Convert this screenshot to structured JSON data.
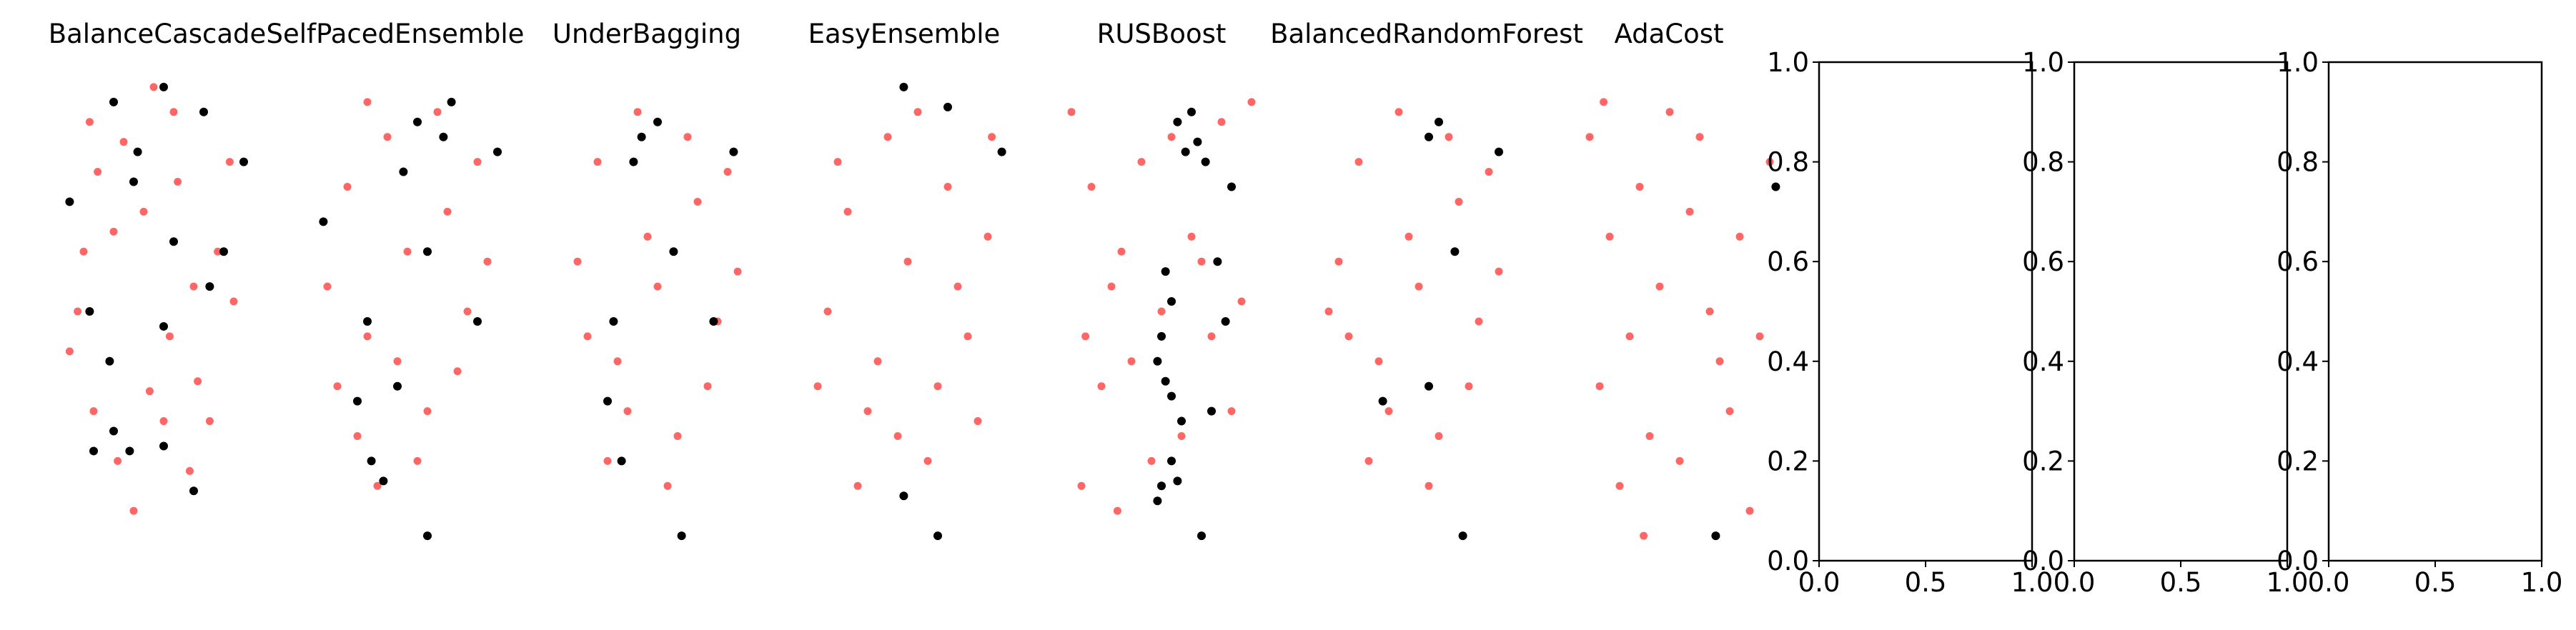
{
  "chart_data": [
    {
      "type": "scatter",
      "title": "BalanceCascade",
      "axes_visible": false,
      "series": [
        {
          "color": "#ff0000",
          "opacity": 0.6,
          "points": [
            [
              0.08,
              0.42
            ],
            [
              0.15,
              0.62
            ],
            [
              0.22,
              0.78
            ],
            [
              0.35,
              0.84
            ],
            [
              0.45,
              0.7
            ],
            [
              0.6,
              0.9
            ],
            [
              0.7,
              0.55
            ],
            [
              0.82,
              0.62
            ],
            [
              0.2,
              0.3
            ],
            [
              0.32,
              0.2
            ],
            [
              0.48,
              0.34
            ],
            [
              0.58,
              0.45
            ],
            [
              0.68,
              0.18
            ],
            [
              0.72,
              0.36
            ],
            [
              0.9,
              0.52
            ],
            [
              0.12,
              0.5
            ],
            [
              0.4,
              0.1
            ],
            [
              0.55,
              0.28
            ],
            [
              0.78,
              0.28
            ],
            [
              0.3,
              0.66
            ],
            [
              0.62,
              0.76
            ],
            [
              0.18,
              0.88
            ],
            [
              0.5,
              0.95
            ],
            [
              0.88,
              0.8
            ]
          ]
        },
        {
          "color": "#000000",
          "opacity": 1,
          "points": [
            [
              0.3,
              0.92
            ],
            [
              0.42,
              0.82
            ],
            [
              0.55,
              0.95
            ],
            [
              0.75,
              0.9
            ],
            [
              0.95,
              0.8
            ],
            [
              0.08,
              0.72
            ],
            [
              0.6,
              0.64
            ],
            [
              0.18,
              0.5
            ],
            [
              0.28,
              0.4
            ],
            [
              0.55,
              0.47
            ],
            [
              0.2,
              0.22
            ],
            [
              0.38,
              0.22
            ],
            [
              0.55,
              0.23
            ],
            [
              0.7,
              0.14
            ],
            [
              0.4,
              0.76
            ],
            [
              0.85,
              0.62
            ],
            [
              0.78,
              0.55
            ],
            [
              0.3,
              0.26
            ]
          ]
        }
      ]
    },
    {
      "type": "scatter",
      "title": "SelfPacedEnsemble",
      "axes_visible": false,
      "series": [
        {
          "color": "#ff0000",
          "opacity": 0.6,
          "points": [
            [
              0.1,
              0.55
            ],
            [
              0.2,
              0.75
            ],
            [
              0.3,
              0.45
            ],
            [
              0.4,
              0.85
            ],
            [
              0.5,
              0.62
            ],
            [
              0.6,
              0.3
            ],
            [
              0.7,
              0.7
            ],
            [
              0.8,
              0.5
            ],
            [
              0.9,
              0.6
            ],
            [
              0.25,
              0.25
            ],
            [
              0.35,
              0.15
            ],
            [
              0.55,
              0.2
            ],
            [
              0.65,
              0.9
            ],
            [
              0.75,
              0.38
            ],
            [
              0.15,
              0.35
            ],
            [
              0.45,
              0.4
            ],
            [
              0.85,
              0.8
            ],
            [
              0.3,
              0.92
            ]
          ]
        },
        {
          "color": "#000000",
          "opacity": 1,
          "points": [
            [
              0.55,
              0.88
            ],
            [
              0.72,
              0.92
            ],
            [
              0.68,
              0.85
            ],
            [
              0.95,
              0.82
            ],
            [
              0.48,
              0.78
            ],
            [
              0.08,
              0.68
            ],
            [
              0.6,
              0.62
            ],
            [
              0.3,
              0.48
            ],
            [
              0.85,
              0.48
            ],
            [
              0.45,
              0.35
            ],
            [
              0.25,
              0.32
            ],
            [
              0.32,
              0.2
            ],
            [
              0.38,
              0.16
            ],
            [
              0.6,
              0.05
            ]
          ]
        }
      ]
    },
    {
      "type": "scatter",
      "title": "UnderBagging",
      "axes_visible": false,
      "series": [
        {
          "color": "#ff0000",
          "opacity": 0.6,
          "points": [
            [
              0.1,
              0.6
            ],
            [
              0.2,
              0.8
            ],
            [
              0.3,
              0.4
            ],
            [
              0.4,
              0.9
            ],
            [
              0.5,
              0.55
            ],
            [
              0.6,
              0.25
            ],
            [
              0.7,
              0.72
            ],
            [
              0.8,
              0.48
            ],
            [
              0.9,
              0.58
            ],
            [
              0.25,
              0.2
            ],
            [
              0.35,
              0.3
            ],
            [
              0.55,
              0.15
            ],
            [
              0.65,
              0.85
            ],
            [
              0.75,
              0.35
            ],
            [
              0.15,
              0.45
            ],
            [
              0.45,
              0.65
            ],
            [
              0.85,
              0.78
            ]
          ]
        },
        {
          "color": "#000000",
          "opacity": 1,
          "points": [
            [
              0.42,
              0.85
            ],
            [
              0.5,
              0.88
            ],
            [
              0.38,
              0.8
            ],
            [
              0.88,
              0.82
            ],
            [
              0.58,
              0.62
            ],
            [
              0.28,
              0.48
            ],
            [
              0.78,
              0.48
            ],
            [
              0.25,
              0.32
            ],
            [
              0.32,
              0.2
            ],
            [
              0.62,
              0.05
            ]
          ]
        }
      ]
    },
    {
      "type": "scatter",
      "title": "EasyEnsemble",
      "axes_visible": false,
      "series": [
        {
          "color": "#ff0000",
          "opacity": 0.6,
          "points": [
            [
              0.1,
              0.5
            ],
            [
              0.2,
              0.7
            ],
            [
              0.3,
              0.3
            ],
            [
              0.4,
              0.85
            ],
            [
              0.5,
              0.6
            ],
            [
              0.6,
              0.2
            ],
            [
              0.7,
              0.75
            ],
            [
              0.8,
              0.45
            ],
            [
              0.9,
              0.65
            ],
            [
              0.25,
              0.15
            ],
            [
              0.35,
              0.4
            ],
            [
              0.55,
              0.9
            ],
            [
              0.65,
              0.35
            ],
            [
              0.75,
              0.55
            ],
            [
              0.15,
              0.8
            ],
            [
              0.45,
              0.25
            ],
            [
              0.85,
              0.28
            ],
            [
              0.05,
              0.35
            ],
            [
              0.92,
              0.85
            ]
          ]
        },
        {
          "color": "#000000",
          "opacity": 1,
          "points": [
            [
              0.48,
              0.95
            ],
            [
              0.7,
              0.91
            ],
            [
              0.97,
              0.82
            ],
            [
              0.48,
              0.13
            ],
            [
              0.65,
              0.05
            ]
          ]
        }
      ]
    },
    {
      "type": "scatter",
      "title": "RUSBoost",
      "axes_visible": false,
      "series": [
        {
          "color": "#ff0000",
          "opacity": 0.6,
          "points": [
            [
              0.05,
              0.9
            ],
            [
              0.15,
              0.75
            ],
            [
              0.25,
              0.55
            ],
            [
              0.35,
              0.4
            ],
            [
              0.45,
              0.2
            ],
            [
              0.55,
              0.85
            ],
            [
              0.65,
              0.65
            ],
            [
              0.75,
              0.45
            ],
            [
              0.85,
              0.3
            ],
            [
              0.95,
              0.92
            ],
            [
              0.1,
              0.15
            ],
            [
              0.2,
              0.35
            ],
            [
              0.3,
              0.62
            ],
            [
              0.4,
              0.8
            ],
            [
              0.5,
              0.5
            ],
            [
              0.6,
              0.25
            ],
            [
              0.7,
              0.6
            ],
            [
              0.8,
              0.88
            ],
            [
              0.9,
              0.52
            ],
            [
              0.12,
              0.45
            ],
            [
              0.28,
              0.1
            ]
          ]
        },
        {
          "color": "#000000",
          "opacity": 1,
          "points": [
            [
              0.58,
              0.88
            ],
            [
              0.65,
              0.9
            ],
            [
              0.68,
              0.84
            ],
            [
              0.62,
              0.82
            ],
            [
              0.72,
              0.8
            ],
            [
              0.85,
              0.75
            ],
            [
              0.52,
              0.58
            ],
            [
              0.55,
              0.52
            ],
            [
              0.78,
              0.6
            ],
            [
              0.82,
              0.48
            ],
            [
              0.5,
              0.45
            ],
            [
              0.48,
              0.4
            ],
            [
              0.52,
              0.36
            ],
            [
              0.55,
              0.33
            ],
            [
              0.75,
              0.3
            ],
            [
              0.6,
              0.28
            ],
            [
              0.55,
              0.2
            ],
            [
              0.5,
              0.15
            ],
            [
              0.58,
              0.16
            ],
            [
              0.48,
              0.12
            ],
            [
              0.7,
              0.05
            ]
          ]
        }
      ]
    },
    {
      "type": "scatter",
      "title": "BalancedRandomForest",
      "axes_visible": false,
      "series": [
        {
          "color": "#ff0000",
          "opacity": 0.6,
          "points": [
            [
              0.1,
              0.6
            ],
            [
              0.2,
              0.8
            ],
            [
              0.3,
              0.4
            ],
            [
              0.4,
              0.9
            ],
            [
              0.5,
              0.55
            ],
            [
              0.6,
              0.25
            ],
            [
              0.7,
              0.72
            ],
            [
              0.8,
              0.48
            ],
            [
              0.9,
              0.58
            ],
            [
              0.25,
              0.2
            ],
            [
              0.35,
              0.3
            ],
            [
              0.55,
              0.15
            ],
            [
              0.65,
              0.85
            ],
            [
              0.75,
              0.35
            ],
            [
              0.15,
              0.45
            ],
            [
              0.45,
              0.65
            ],
            [
              0.85,
              0.78
            ],
            [
              0.05,
              0.5
            ]
          ]
        },
        {
          "color": "#000000",
          "opacity": 1,
          "points": [
            [
              0.55,
              0.85
            ],
            [
              0.6,
              0.88
            ],
            [
              0.9,
              0.82
            ],
            [
              0.68,
              0.62
            ],
            [
              0.32,
              0.32
            ],
            [
              0.55,
              0.35
            ],
            [
              0.72,
              0.05
            ]
          ]
        }
      ]
    },
    {
      "type": "scatter",
      "title": "AdaCost",
      "axes_visible": false,
      "series": [
        {
          "color": "#ff0000",
          "opacity": 0.6,
          "points": [
            [
              0.05,
              0.85
            ],
            [
              0.15,
              0.65
            ],
            [
              0.25,
              0.45
            ],
            [
              0.35,
              0.25
            ],
            [
              0.45,
              0.9
            ],
            [
              0.55,
              0.7
            ],
            [
              0.65,
              0.5
            ],
            [
              0.75,
              0.3
            ],
            [
              0.85,
              0.1
            ],
            [
              0.95,
              0.8
            ],
            [
              0.1,
              0.35
            ],
            [
              0.2,
              0.15
            ],
            [
              0.3,
              0.75
            ],
            [
              0.4,
              0.55
            ],
            [
              0.5,
              0.2
            ],
            [
              0.6,
              0.85
            ],
            [
              0.7,
              0.4
            ],
            [
              0.8,
              0.65
            ],
            [
              0.9,
              0.45
            ],
            [
              0.12,
              0.92
            ],
            [
              0.32,
              0.05
            ]
          ]
        },
        {
          "color": "#000000",
          "opacity": 1,
          "points": [
            [
              0.98,
              0.75
            ],
            [
              0.68,
              0.05
            ]
          ]
        }
      ]
    },
    {
      "type": "scatter",
      "title": "",
      "axes_visible": true,
      "xlim": [
        0,
        1
      ],
      "ylim": [
        0,
        1
      ],
      "xticks": [
        "0.0",
        "0.5",
        "1.0"
      ],
      "yticks": [
        "0.0",
        "0.2",
        "0.4",
        "0.6",
        "0.8",
        "1.0"
      ],
      "series": []
    },
    {
      "type": "scatter",
      "title": "",
      "axes_visible": true,
      "xlim": [
        0,
        1
      ],
      "ylim": [
        0,
        1
      ],
      "xticks": [
        "0.0",
        "0.5",
        "1.0"
      ],
      "yticks": [
        "0.0",
        "0.2",
        "0.4",
        "0.6",
        "0.8",
        "1.0"
      ],
      "series": []
    },
    {
      "type": "scatter",
      "title": "",
      "axes_visible": true,
      "xlim": [
        0,
        1
      ],
      "ylim": [
        0,
        1
      ],
      "xticks": [
        "0.0",
        "0.5",
        "1.0"
      ],
      "yticks": [
        "0.0",
        "0.2",
        "0.4",
        "0.6",
        "0.8",
        "1.0"
      ],
      "series": []
    }
  ]
}
